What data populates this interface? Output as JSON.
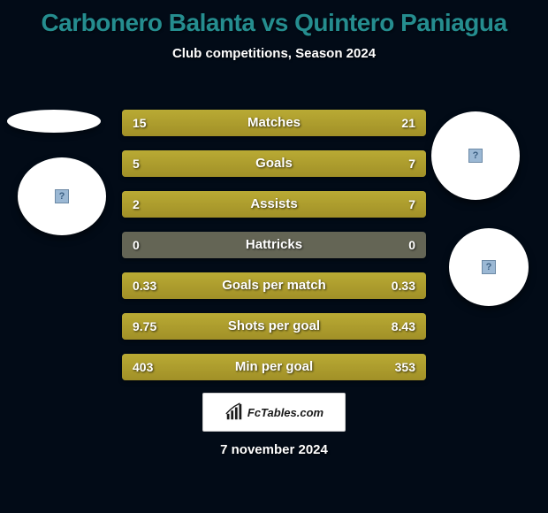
{
  "title": "Carbonero Balanta vs Quintero Paniagua",
  "subtitle": "Club competitions, Season 2024",
  "date": "7 november 2024",
  "brand": "FcTables.com",
  "colors": {
    "background": "#020b17",
    "title": "#258d8f",
    "bar_fill": "#b9aa34",
    "bar_track": "#646555",
    "text": "#ffffff",
    "brand_bg": "#ffffff"
  },
  "rows": [
    {
      "label": "Matches",
      "left": "15",
      "right": "21",
      "left_pct": 41,
      "right_pct": 59
    },
    {
      "label": "Goals",
      "left": "5",
      "right": "7",
      "left_pct": 41,
      "right_pct": 59
    },
    {
      "label": "Assists",
      "left": "2",
      "right": "7",
      "left_pct": 22,
      "right_pct": 78
    },
    {
      "label": "Hattricks",
      "left": "0",
      "right": "0",
      "left_pct": 0,
      "right_pct": 0
    },
    {
      "label": "Goals per match",
      "left": "0.33",
      "right": "0.33",
      "left_pct": 50,
      "right_pct": 50
    },
    {
      "label": "Shots per goal",
      "left": "9.75",
      "right": "8.43",
      "left_pct": 54,
      "right_pct": 46
    },
    {
      "label": "Min per goal",
      "left": "403",
      "right": "353",
      "left_pct": 53,
      "right_pct": 47
    }
  ]
}
